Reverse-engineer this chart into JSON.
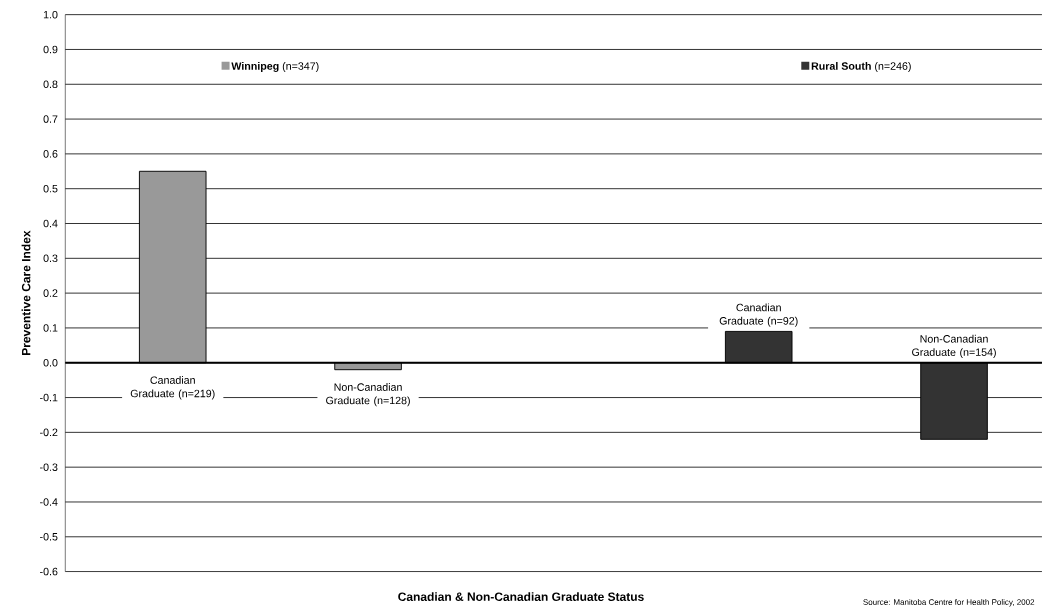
{
  "chart_data": {
    "type": "bar",
    "ylabel": "Preventive Care Index",
    "xlabel": "Canadian & Non-Canadian Graduate Status",
    "categories": [
      "Canadian Graduate (n=219)",
      "Non-Canadian Graduate (n=128)",
      null,
      "Canadian Graduate (n=92)",
      "Non-Canadian Graduate (n=154)"
    ],
    "series": [
      {
        "name": "**Winnipeg** (n=347)",
        "color": "#999999",
        "values": [
          0.55,
          -0.02,
          null,
          null,
          null
        ]
      },
      {
        "name": "**Rural South** (n=246)",
        "color": "#333333",
        "values": [
          null,
          null,
          null,
          0.09,
          -0.22
        ]
      }
    ],
    "ylim": [
      -0.6,
      1.0
    ],
    "yticks": [
      -0.6,
      -0.5,
      -0.4,
      -0.3,
      -0.2,
      -0.1,
      {
        "value": 0,
        "label": "0.0"
      },
      0.1,
      0.2,
      0.3,
      0.4,
      0.5,
      0.6,
      0.7,
      0.8,
      0.9,
      {
        "value": 1,
        "label": "1.0"
      }
    ],
    "grid": "y",
    "legend": "top",
    "annotations": [
      "Source: Manitoba Centre for Health Policy, 2002"
    ]
  }
}
